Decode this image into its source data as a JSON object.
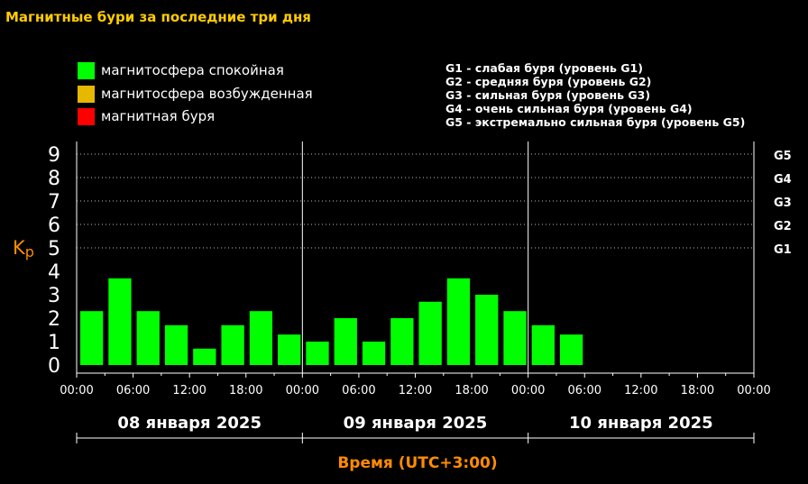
{
  "title": "Магнитные бури за последние три дня",
  "legend": [
    {
      "label": "магнитосфера спокойная",
      "color": "#00ff00"
    },
    {
      "label": "магнитосфера возбужденная",
      "color": "#e6b800"
    },
    {
      "label": "магнитная буря",
      "color": "#ff0000"
    }
  ],
  "g_levels": [
    "G1 - слабая буря (уровень G1)",
    "G2 - средняя буря (уровень G2)",
    "G3 - сильная буря (уровень G3)",
    "G4 - очень сильная буря (уровень G4)",
    "G5 - экстремально сильная буря (уровень G5)"
  ],
  "chart_data": {
    "type": "bar",
    "ylabel_main": "K",
    "ylabel_sub": "p",
    "xlabel": "Время (UTC+3:00)",
    "ylim": [
      0,
      9
    ],
    "y_ticks": [
      "0",
      "1",
      "2",
      "3",
      "4",
      "5",
      "6",
      "7",
      "8",
      "9"
    ],
    "right_ticks": [
      {
        "label": "G1",
        "value": 5
      },
      {
        "label": "G2",
        "value": 6
      },
      {
        "label": "G3",
        "value": 7
      },
      {
        "label": "G4",
        "value": 8
      },
      {
        "label": "G5",
        "value": 9
      }
    ],
    "x_ticks": [
      "00:00",
      "06:00",
      "12:00",
      "18:00",
      "00:00",
      "06:00",
      "12:00",
      "18:00",
      "00:00",
      "06:00",
      "12:00",
      "18:00",
      "00:00"
    ],
    "days": [
      "08 января 2025",
      "09 января 2025",
      "10 января 2025"
    ],
    "bar_color": "#00ff00",
    "values": [
      2.3,
      3.7,
      2.3,
      1.7,
      0.7,
      1.7,
      2.3,
      1.3,
      1.0,
      2.0,
      1.0,
      2.0,
      2.7,
      3.7,
      3.0,
      2.3,
      1.7,
      1.3
    ],
    "grid": "dotted at Kp 5–9"
  }
}
